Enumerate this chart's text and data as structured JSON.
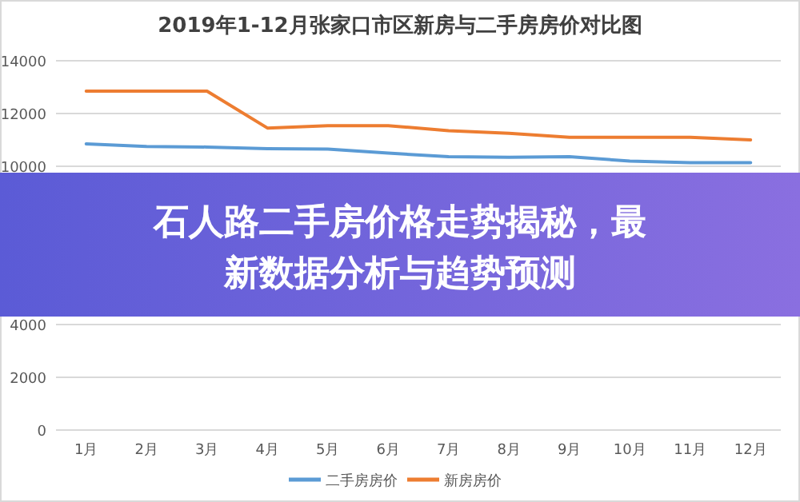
{
  "chart_data": {
    "type": "line",
    "title": "2019年1-12月张家口市区新房与二手房房价对比图",
    "categories": [
      "1月",
      "2月",
      "3月",
      "4月",
      "5月",
      "6月",
      "7月",
      "8月",
      "9月",
      "10月",
      "11月",
      "12月"
    ],
    "series": [
      {
        "name": "二手房房价",
        "color": "#5b9bd5",
        "values": [
          10850,
          10750,
          10730,
          10670,
          10650,
          10500,
          10360,
          10340,
          10360,
          10200,
          10140,
          10140
        ]
      },
      {
        "name": "新房房价",
        "color": "#ed7d31",
        "values": [
          12850,
          12850,
          12850,
          11450,
          11540,
          11540,
          11350,
          11250,
          11100,
          11100,
          11100,
          11000
        ]
      }
    ],
    "ylim": [
      0,
      14000
    ],
    "yticks": [
      0,
      2000,
      4000,
      10000,
      12000,
      14000
    ],
    "grid": "y",
    "legend": "bottom",
    "marker": "none",
    "line_style": "solid",
    "annotations": [
      "石人路二手房价格走势揭秘，最新数据分析与趋势预测"
    ]
  }
}
